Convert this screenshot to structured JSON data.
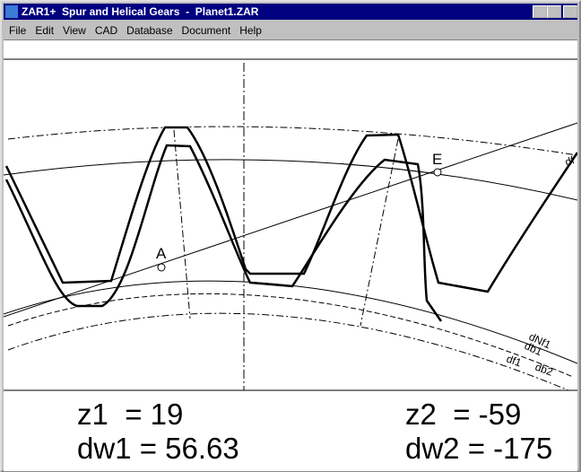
{
  "window": {
    "title": "ZAR1+  Spur and Helical Gears  -  Planet1.ZAR"
  },
  "menu": [
    "File",
    "Edit",
    "View",
    "CAD",
    "Database",
    "Document",
    "Help"
  ],
  "drawing": {
    "points": [
      "A",
      "E"
    ],
    "circle_labels": [
      "dNf1",
      "db1",
      "df1",
      "db2",
      "df"
    ]
  },
  "results": {
    "z1": "z1  = 19",
    "z2": "z2  = -59",
    "dw1": "dw1 = 56.63",
    "dw2": "dw2 = -175"
  }
}
